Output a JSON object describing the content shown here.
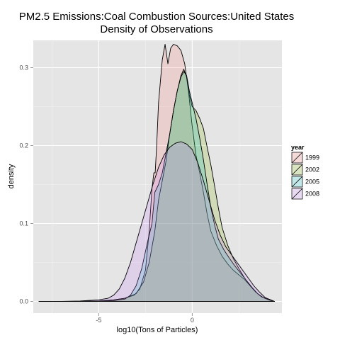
{
  "chart_data": {
    "type": "area",
    "title_line1": "PM2.5 Emissions:Coal Combustion Sources:United States",
    "title_line2": "Density of Observations",
    "xlabel": "log10(Tons of Particles)",
    "ylabel": "density",
    "xlim": [
      -8.5,
      4.8
    ],
    "ylim": [
      -0.015,
      0.335
    ],
    "x_ticks": [
      -5,
      0
    ],
    "x_tick_labels": [
      "-5",
      "0"
    ],
    "y_ticks": [
      0.0,
      0.1,
      0.2,
      0.3
    ],
    "y_tick_labels": [
      "0.0",
      "0.1",
      "0.2",
      "0.3"
    ],
    "grid": true,
    "legend": {
      "title": "year",
      "position": "right"
    },
    "series": [
      {
        "name": "1999",
        "color": "#F8766D",
        "points": [
          [
            -8.2,
            0
          ],
          [
            -6.0,
            0
          ],
          [
            -5.0,
            0.0005
          ],
          [
            -4.2,
            0.002
          ],
          [
            -3.6,
            0.004
          ],
          [
            -3.1,
            0.008
          ],
          [
            -2.8,
            0.016
          ],
          [
            -2.5,
            0.04
          ],
          [
            -2.3,
            0.09
          ],
          [
            -2.15,
            0.145
          ],
          [
            -2.05,
            0.165
          ],
          [
            -1.98,
            0.165
          ],
          [
            -1.9,
            0.2
          ],
          [
            -1.8,
            0.255
          ],
          [
            -1.6,
            0.31
          ],
          [
            -1.45,
            0.33
          ],
          [
            -1.3,
            0.305
          ],
          [
            -1.15,
            0.325
          ],
          [
            -1.0,
            0.33
          ],
          [
            -0.8,
            0.328
          ],
          [
            -0.6,
            0.322
          ],
          [
            -0.4,
            0.305
          ],
          [
            -0.2,
            0.27
          ],
          [
            0.0,
            0.225
          ],
          [
            0.2,
            0.188
          ],
          [
            0.4,
            0.165
          ],
          [
            0.6,
            0.14
          ],
          [
            0.8,
            0.112
          ],
          [
            1.0,
            0.09
          ],
          [
            1.3,
            0.072
          ],
          [
            1.6,
            0.058
          ],
          [
            1.9,
            0.048
          ],
          [
            2.2,
            0.04
          ],
          [
            2.5,
            0.034
          ],
          [
            2.8,
            0.028
          ],
          [
            3.1,
            0.02
          ],
          [
            3.4,
            0.012
          ],
          [
            3.7,
            0.006
          ],
          [
            4.1,
            0.002
          ],
          [
            4.4,
            0
          ]
        ]
      },
      {
        "name": "2002",
        "color": "#7CAE00",
        "points": [
          [
            -8.2,
            0
          ],
          [
            -6.0,
            0
          ],
          [
            -5.0,
            0.0005
          ],
          [
            -4.2,
            0.002
          ],
          [
            -3.6,
            0.004
          ],
          [
            -3.0,
            0.01
          ],
          [
            -2.6,
            0.025
          ],
          [
            -2.3,
            0.05
          ],
          [
            -2.0,
            0.09
          ],
          [
            -1.8,
            0.13
          ],
          [
            -1.6,
            0.155
          ],
          [
            -1.4,
            0.18
          ],
          [
            -1.2,
            0.215
          ],
          [
            -1.0,
            0.245
          ],
          [
            -0.8,
            0.27
          ],
          [
            -0.6,
            0.29
          ],
          [
            -0.45,
            0.298
          ],
          [
            -0.3,
            0.288
          ],
          [
            -0.15,
            0.265
          ],
          [
            0.0,
            0.25
          ],
          [
            0.2,
            0.245
          ],
          [
            0.4,
            0.235
          ],
          [
            0.6,
            0.222
          ],
          [
            0.8,
            0.198
          ],
          [
            1.0,
            0.175
          ],
          [
            1.2,
            0.148
          ],
          [
            1.4,
            0.12
          ],
          [
            1.6,
            0.095
          ],
          [
            1.9,
            0.072
          ],
          [
            2.2,
            0.055
          ],
          [
            2.5,
            0.042
          ],
          [
            2.8,
            0.03
          ],
          [
            3.1,
            0.02
          ],
          [
            3.4,
            0.012
          ],
          [
            3.7,
            0.006
          ],
          [
            4.1,
            0.002
          ],
          [
            4.4,
            0
          ]
        ]
      },
      {
        "name": "2005",
        "color": "#00BFC4",
        "points": [
          [
            -8.2,
            0
          ],
          [
            -6.0,
            0
          ],
          [
            -5.0,
            0.0005
          ],
          [
            -4.2,
            0.001
          ],
          [
            -3.6,
            0.003
          ],
          [
            -3.3,
            0.008
          ],
          [
            -3.0,
            0.02
          ],
          [
            -2.7,
            0.042
          ],
          [
            -2.4,
            0.075
          ],
          [
            -2.15,
            0.1
          ],
          [
            -2.0,
            0.14
          ],
          [
            -1.8,
            0.15
          ],
          [
            -1.6,
            0.165
          ],
          [
            -1.4,
            0.19
          ],
          [
            -1.2,
            0.215
          ],
          [
            -1.0,
            0.245
          ],
          [
            -0.8,
            0.27
          ],
          [
            -0.6,
            0.288
          ],
          [
            -0.45,
            0.295
          ],
          [
            -0.3,
            0.29
          ],
          [
            -0.15,
            0.27
          ],
          [
            0.0,
            0.255
          ],
          [
            0.2,
            0.235
          ],
          [
            0.4,
            0.21
          ],
          [
            0.6,
            0.182
          ],
          [
            0.8,
            0.15
          ],
          [
            1.0,
            0.12
          ],
          [
            1.2,
            0.098
          ],
          [
            1.4,
            0.08
          ],
          [
            1.7,
            0.066
          ],
          [
            2.0,
            0.055
          ],
          [
            2.3,
            0.045
          ],
          [
            2.6,
            0.036
          ],
          [
            2.9,
            0.027
          ],
          [
            3.2,
            0.018
          ],
          [
            3.5,
            0.01
          ],
          [
            3.8,
            0.005
          ],
          [
            4.1,
            0.002
          ],
          [
            4.4,
            0
          ]
        ]
      },
      {
        "name": "2008",
        "color": "#C77CFF",
        "points": [
          [
            -8.2,
            0
          ],
          [
            -7.0,
            0
          ],
          [
            -6.0,
            0.0005
          ],
          [
            -5.0,
            0.002
          ],
          [
            -4.5,
            0.004
          ],
          [
            -4.2,
            0.008
          ],
          [
            -3.9,
            0.016
          ],
          [
            -3.6,
            0.03
          ],
          [
            -3.3,
            0.05
          ],
          [
            -3.0,
            0.075
          ],
          [
            -2.7,
            0.1
          ],
          [
            -2.4,
            0.125
          ],
          [
            -2.1,
            0.15
          ],
          [
            -1.8,
            0.172
          ],
          [
            -1.5,
            0.188
          ],
          [
            -1.2,
            0.198
          ],
          [
            -0.9,
            0.203
          ],
          [
            -0.6,
            0.205
          ],
          [
            -0.3,
            0.202
          ],
          [
            0.0,
            0.195
          ],
          [
            0.3,
            0.178
          ],
          [
            0.6,
            0.155
          ],
          [
            0.9,
            0.13
          ],
          [
            1.2,
            0.105
          ],
          [
            1.5,
            0.085
          ],
          [
            1.8,
            0.07
          ],
          [
            2.1,
            0.06
          ],
          [
            2.4,
            0.05
          ],
          [
            2.7,
            0.04
          ],
          [
            3.0,
            0.03
          ],
          [
            3.3,
            0.02
          ],
          [
            3.6,
            0.012
          ],
          [
            3.9,
            0.005
          ],
          [
            4.2,
            0.002
          ],
          [
            4.4,
            0
          ]
        ]
      }
    ]
  }
}
